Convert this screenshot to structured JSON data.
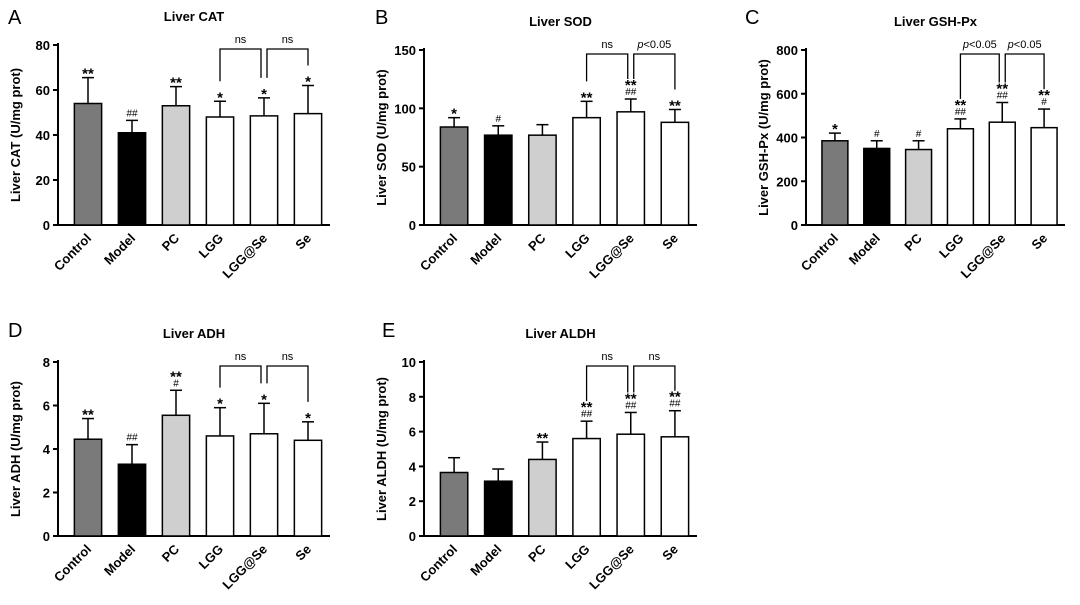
{
  "figure": {
    "colors": {
      "Control": "#7a7a7a",
      "Model": "#000000",
      "PC": "#cfcfcf",
      "LGG": "#ffffff",
      "LGG@Se": "#ffffff",
      "Se": "#ffffff"
    }
  },
  "chart_data": [
    {
      "panel": "A",
      "type": "bar",
      "title": "Liver CAT",
      "ylabel": "Liver CAT (U/mg prot)",
      "ylim": [
        0,
        80
      ],
      "yticks": [
        0,
        20,
        40,
        60,
        80
      ],
      "categories": [
        "Control",
        "Model",
        "PC",
        "LGG",
        "LGG@Se",
        "Se"
      ],
      "values": [
        54,
        41,
        53,
        48,
        48.5,
        49.5
      ],
      "errors": [
        11.5,
        5.5,
        8.5,
        7,
        8,
        12.5
      ],
      "marks": [
        [
          "**"
        ],
        [
          "##"
        ],
        [
          "**"
        ],
        [
          "*"
        ],
        [
          "*"
        ],
        [
          "*"
        ]
      ],
      "brackets": [
        {
          "from": 3,
          "to": 4,
          "label": "ns"
        },
        {
          "from": 4,
          "to": 5,
          "label": "ns"
        }
      ]
    },
    {
      "panel": "B",
      "type": "bar",
      "title": "Liver SOD",
      "ylabel": "Liver SOD (U/mg prot)",
      "ylim": [
        0,
        150
      ],
      "yticks": [
        0,
        50,
        100,
        150
      ],
      "categories": [
        "Control",
        "Model",
        "PC",
        "LGG",
        "LGG@Se",
        "Se"
      ],
      "values": [
        84,
        77,
        77,
        92,
        97,
        88
      ],
      "errors": [
        8,
        8,
        9,
        14,
        11,
        11
      ],
      "marks": [
        [
          "*"
        ],
        [
          "#"
        ],
        [],
        [
          "**"
        ],
        [
          "**",
          "##"
        ],
        [
          "**"
        ]
      ],
      "brackets": [
        {
          "from": 3,
          "to": 4,
          "label": "ns"
        },
        {
          "from": 4,
          "to": 5,
          "label": "p<0.05"
        }
      ]
    },
    {
      "panel": "C",
      "type": "bar",
      "title": "Liver GSH-Px",
      "ylabel": "Liver GSH-Px (U/mg prot)",
      "ylim": [
        0,
        800
      ],
      "yticks": [
        0,
        200,
        400,
        600,
        800
      ],
      "categories": [
        "Control",
        "Model",
        "PC",
        "LGG",
        "LGG@Se",
        "Se"
      ],
      "values": [
        385,
        350,
        345,
        440,
        470,
        445
      ],
      "errors": [
        35,
        35,
        40,
        45,
        90,
        85
      ],
      "marks": [
        [
          "*"
        ],
        [
          "#"
        ],
        [
          "#"
        ],
        [
          "**",
          "##"
        ],
        [
          "**",
          "##"
        ],
        [
          "**",
          "#"
        ]
      ],
      "brackets": [
        {
          "from": 3,
          "to": 4,
          "label": "p<0.05"
        },
        {
          "from": 4,
          "to": 5,
          "label": "p<0.05"
        }
      ]
    },
    {
      "panel": "D",
      "type": "bar",
      "title": "Liver ADH",
      "ylabel": "Liver ADH (U/mg prot)",
      "ylim": [
        0,
        8
      ],
      "yticks": [
        0,
        2,
        4,
        6,
        8
      ],
      "categories": [
        "Control",
        "Model",
        "PC",
        "LGG",
        "LGG@Se",
        "Se"
      ],
      "values": [
        4.45,
        3.3,
        5.55,
        4.6,
        4.7,
        4.4
      ],
      "errors": [
        0.95,
        0.9,
        1.15,
        1.3,
        1.4,
        0.85
      ],
      "marks": [
        [
          "**"
        ],
        [
          "##"
        ],
        [
          "**",
          "#"
        ],
        [
          "*"
        ],
        [
          "*"
        ],
        [
          "*"
        ]
      ],
      "brackets": [
        {
          "from": 3,
          "to": 4,
          "label": "ns"
        },
        {
          "from": 4,
          "to": 5,
          "label": "ns"
        }
      ]
    },
    {
      "panel": "E",
      "type": "bar",
      "title": "Liver ALDH",
      "ylabel": "Liver ALDH (U/mg prot)",
      "ylim": [
        0,
        10
      ],
      "yticks": [
        0,
        2,
        4,
        6,
        8,
        10
      ],
      "categories": [
        "Control",
        "Model",
        "PC",
        "LGG",
        "LGG@Se",
        "Se"
      ],
      "values": [
        3.65,
        3.15,
        4.4,
        5.6,
        5.85,
        5.7
      ],
      "errors": [
        0.85,
        0.7,
        1.0,
        1.0,
        1.25,
        1.5
      ],
      "marks": [
        [],
        [],
        [
          "**"
        ],
        [
          "**",
          "##"
        ],
        [
          "**",
          "##"
        ],
        [
          "**",
          "##"
        ]
      ],
      "brackets": [
        {
          "from": 3,
          "to": 4,
          "label": "ns"
        },
        {
          "from": 4,
          "to": 5,
          "label": "ns"
        }
      ]
    }
  ]
}
